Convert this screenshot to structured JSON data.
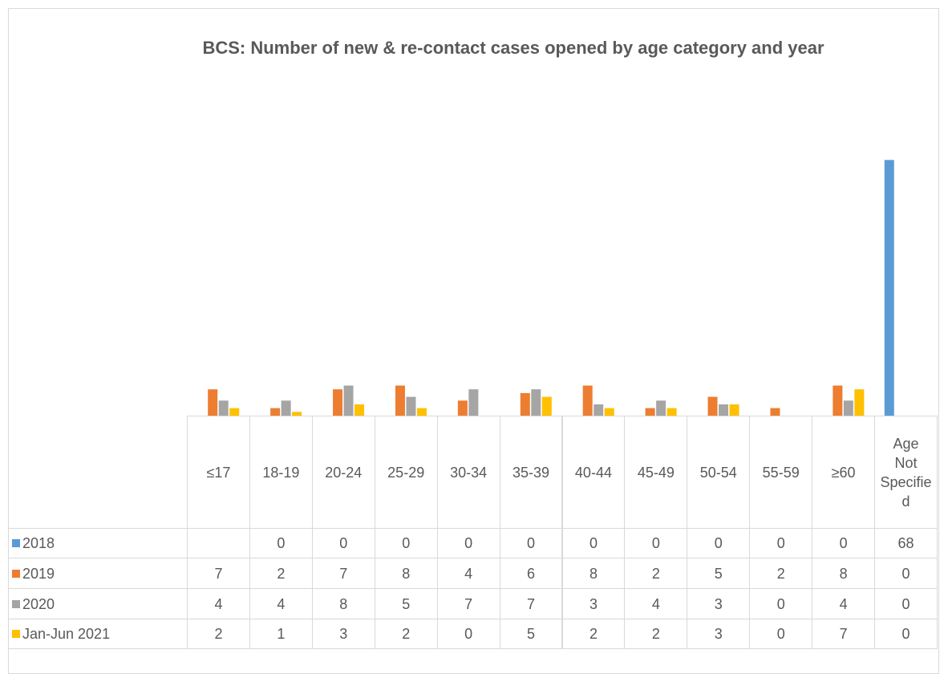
{
  "chart_data": {
    "type": "bar",
    "title": "BCS: Number of new & re-contact cases opened by age category and year",
    "categories": [
      "≤17",
      "18-19",
      "20-24",
      "25-29",
      "30-34",
      "35-39",
      "40-44",
      "45-49",
      "50-54",
      "55-59",
      "≥60",
      "Age Not Specified"
    ],
    "series": [
      {
        "name": "2018",
        "color": "#5b9bd5",
        "values": [
          null,
          0,
          0,
          0,
          0,
          0,
          0,
          0,
          0,
          0,
          0,
          68
        ]
      },
      {
        "name": "2019",
        "color": "#ed7d31",
        "values": [
          7,
          2,
          7,
          8,
          4,
          6,
          8,
          2,
          5,
          2,
          8,
          0
        ]
      },
      {
        "name": "2020",
        "color": "#a5a5a5",
        "values": [
          4,
          4,
          8,
          5,
          7,
          7,
          3,
          4,
          3,
          0,
          4,
          0
        ]
      },
      {
        "name": "Jan-Jun 2021",
        "color": "#ffc000",
        "values": [
          2,
          1,
          3,
          2,
          0,
          5,
          2,
          2,
          3,
          0,
          7,
          0
        ]
      }
    ],
    "ylim": [
      0,
      70
    ]
  }
}
